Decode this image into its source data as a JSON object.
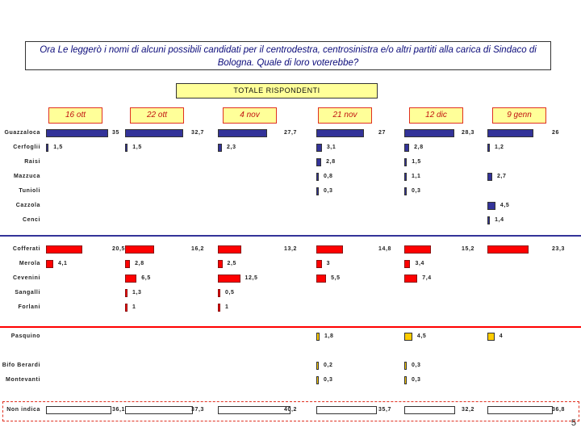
{
  "question": "Ora Le leggerò i nomi di alcuni possibili candidati per il centrodestra, centrosinistra e/o altri partiti alla carica di Sindaco di Bologna. Quale di loro voterebbe?",
  "totale_label": "TOTALE RISPONDENTI",
  "page_number": "5",
  "colors": {
    "centrodestra": "#333399",
    "centrosinistra": "#ff0000",
    "altri": "#ffcc00",
    "non_indica": "#ffffff"
  },
  "chart_data": {
    "type": "bar",
    "title": "TOTALE RISPONDENTI",
    "categories": [
      "16 ott",
      "22 ott",
      "4 nov",
      "21 nov",
      "12 dic",
      "9 genn"
    ],
    "groups": [
      {
        "name": "centrodestra",
        "rows": [
          {
            "label": "Guazzaloca",
            "values": [
              35,
              32.7,
              27.7,
              27,
              28.3,
              26
            ]
          },
          {
            "label": "Cerfoglii",
            "values": [
              1.5,
              1.5,
              2.3,
              3.1,
              2.8,
              1.2
            ]
          },
          {
            "label": "Raisi",
            "values": [
              null,
              null,
              null,
              2.8,
              1.5,
              null
            ]
          },
          {
            "label": "Mazzuca",
            "values": [
              null,
              null,
              null,
              0.8,
              1.1,
              2.7
            ]
          },
          {
            "label": "Tunioli",
            "values": [
              null,
              null,
              null,
              0.3,
              0.3,
              null
            ]
          },
          {
            "label": "Cazzola",
            "values": [
              null,
              null,
              null,
              null,
              null,
              4.5
            ]
          },
          {
            "label": "Cenci",
            "values": [
              null,
              null,
              null,
              null,
              null,
              1.4
            ]
          }
        ]
      },
      {
        "name": "centrosinistra",
        "rows": [
          {
            "label": "Cofferati",
            "values": [
              20.5,
              16.2,
              13.2,
              14.8,
              15.2,
              23.3
            ]
          },
          {
            "label": "Merola",
            "values": [
              4.1,
              2.8,
              2.5,
              3,
              3.4,
              null
            ]
          },
          {
            "label": "Cevenini",
            "values": [
              null,
              6.5,
              12.5,
              5.5,
              7.4,
              null
            ]
          },
          {
            "label": "Sangalli",
            "values": [
              null,
              1.3,
              0.5,
              null,
              null,
              null
            ]
          },
          {
            "label": "Forlani",
            "values": [
              null,
              1,
              1,
              null,
              null,
              null
            ]
          }
        ]
      },
      {
        "name": "altri",
        "rows": [
          {
            "label": "Pasquino",
            "values": [
              null,
              null,
              null,
              1.8,
              4.5,
              4
            ]
          }
        ]
      },
      {
        "name": "minori",
        "rows": [
          {
            "label": "Bifo Berardi",
            "values": [
              null,
              null,
              null,
              0.2,
              0.3,
              null
            ]
          },
          {
            "label": "Montevanti",
            "values": [
              null,
              null,
              null,
              0.3,
              0.3,
              null
            ]
          }
        ]
      },
      {
        "name": "non_indica",
        "rows": [
          {
            "label": "Non indica",
            "values": [
              36.1,
              37.3,
              40.2,
              35.7,
              32.2,
              36.8
            ]
          }
        ]
      }
    ],
    "value_labels": {
      "Guazzaloca": [
        "35",
        "32,7",
        "27,7",
        "27",
        "28,3",
        "26"
      ],
      "Cerfoglii": [
        "1,5",
        "1,5",
        "2,3",
        "3,1",
        "2,8",
        "1,2"
      ],
      "Raisi": [
        "",
        "",
        "",
        "2,8",
        "1,5",
        ""
      ],
      "Mazzuca": [
        "",
        "",
        "",
        "0,8",
        "1,1",
        "2,7"
      ],
      "Tunioli": [
        "",
        "",
        "",
        "0,3",
        "0,3",
        ""
      ],
      "Cazzola": [
        "",
        "",
        "",
        "",
        "",
        "4,5"
      ],
      "Cenci": [
        "",
        "",
        "",
        "",
        "",
        "1,4"
      ],
      "Cofferati": [
        "20,5",
        "16,2",
        "13,2",
        "14,8",
        "15,2",
        "23,3"
      ],
      "Merola": [
        "4,1",
        "2,8",
        "2,5",
        "3",
        "3,4",
        ""
      ],
      "Cevenini": [
        "",
        "6,5",
        "12,5",
        "5,5",
        "7,4",
        ""
      ],
      "Sangalli": [
        "",
        "1,3",
        "0,5",
        "",
        "",
        ""
      ],
      "Forlani": [
        "",
        "1",
        "1",
        "",
        "",
        ""
      ],
      "Pasquino": [
        "",
        "",
        "",
        "1,8",
        "4,5",
        "4"
      ],
      "Bifo Berardi": [
        "",
        "",
        "",
        "0,2",
        "0,3",
        ""
      ],
      "Montevanti": [
        "",
        "",
        "",
        "0,3",
        "0,3",
        ""
      ],
      "Non indica": [
        "36,1",
        "37,3",
        "40,2",
        "35,7",
        "32,2",
        "36,8"
      ]
    }
  }
}
